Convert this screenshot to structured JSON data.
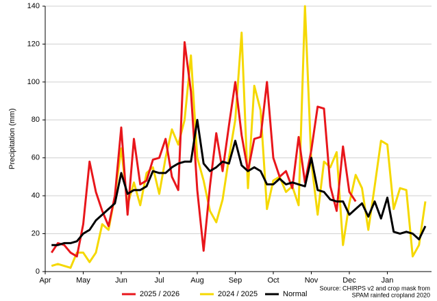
{
  "chart_data": {
    "type": "line",
    "y_label": "Precipitation (mm)",
    "categories": [
      "Apr",
      null,
      null,
      null,
      null,
      null,
      "May",
      null,
      null,
      null,
      null,
      null,
      "Jun",
      null,
      null,
      null,
      null,
      null,
      "Jul",
      null,
      null,
      null,
      null,
      null,
      "Aug",
      null,
      null,
      null,
      null,
      null,
      "Sep",
      null,
      null,
      null,
      null,
      null,
      "Oct",
      null,
      null,
      null,
      null,
      null,
      "Nov",
      null,
      null,
      null,
      null,
      null,
      "Dec",
      null,
      null,
      null,
      null,
      null,
      "Jan",
      null,
      null,
      null,
      null,
      null
    ],
    "series": [
      {
        "name": "2025 / 2026",
        "color": "#e8161b",
        "values": [
          10,
          15,
          14,
          10,
          8,
          25,
          58,
          42,
          32,
          24,
          40,
          76,
          30,
          70,
          46,
          48,
          59,
          60,
          70,
          50,
          43,
          121,
          95,
          43,
          11,
          45,
          73,
          53,
          77,
          100,
          72,
          53,
          70,
          71,
          100,
          60,
          50,
          53,
          44,
          71,
          47,
          64,
          87,
          86,
          45,
          32,
          66,
          42,
          37,
          null,
          null,
          null,
          null,
          null,
          null,
          null,
          null,
          null,
          null,
          null
        ]
      },
      {
        "name": "2024 / 2025",
        "color": "#f5d800",
        "values": [
          3,
          4,
          3,
          2,
          10,
          10,
          5,
          10,
          25,
          22,
          40,
          65,
          35,
          47,
          35,
          52,
          55,
          41,
          60,
          75,
          67,
          80,
          114,
          60,
          48,
          32,
          26,
          38,
          60,
          80,
          126,
          44,
          98,
          85,
          33,
          48,
          50,
          42,
          45,
          35,
          140,
          58,
          30,
          58,
          55,
          63,
          14,
          36,
          51,
          44,
          22,
          45,
          69,
          67,
          33,
          44,
          43,
          8,
          14,
          37
        ]
      },
      {
        "name": "Normal",
        "color": "#000000",
        "values": [
          14,
          14,
          15,
          15,
          16,
          20,
          22,
          27,
          30,
          33,
          36,
          52,
          41,
          43,
          43,
          45,
          53,
          52,
          52,
          55,
          57,
          58,
          58,
          80,
          57,
          53,
          55,
          58,
          57,
          69,
          56,
          53,
          55,
          53,
          46,
          46,
          49,
          46,
          47,
          46,
          45,
          60,
          43,
          42,
          38,
          37,
          37,
          30,
          33,
          36,
          29,
          37,
          28,
          39,
          21,
          20,
          21,
          20,
          17,
          24
        ]
      }
    ],
    "ylim": [
      0,
      140
    ],
    "yticks": [
      0,
      20,
      40,
      60,
      80,
      100,
      120,
      140
    ],
    "grid": true,
    "source": [
      "Source: CHIRPS v2 and crop mask from",
      "SPAM rainfed cropland 2020"
    ]
  }
}
